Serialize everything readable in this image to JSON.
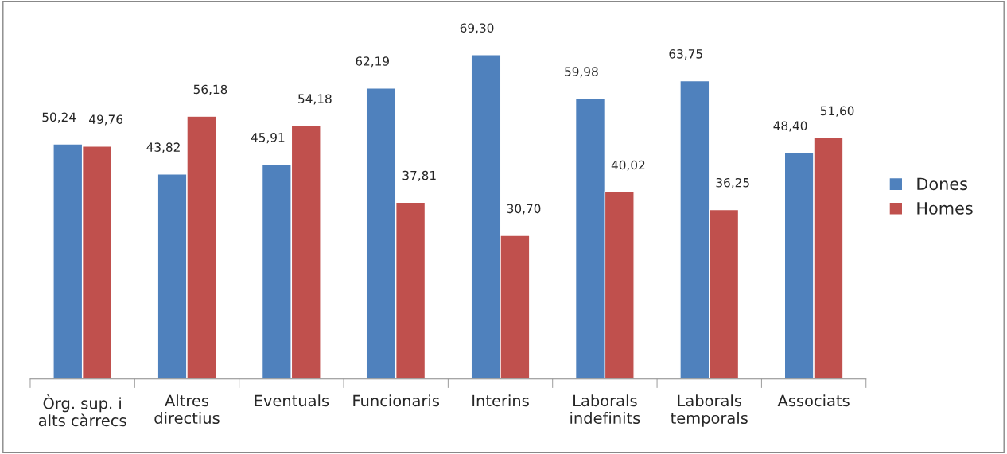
{
  "chart_data": {
    "type": "bar",
    "categories": [
      "Òrg. sup. i\nalts càrrecs",
      "Altres\ndirectius",
      "Eventuals",
      "Funcionaris",
      "Interins",
      "Laborals\nindefinits",
      "Laborals\ntemporals",
      "Associats"
    ],
    "series": [
      {
        "name": "Dones",
        "color": "#4f81bd",
        "values": [
          50.24,
          43.82,
          45.91,
          62.19,
          69.3,
          59.98,
          63.75,
          48.4
        ],
        "value_labels": [
          "50,24",
          "43,82",
          "45,91",
          "62,19",
          "69,30",
          "59,98",
          "63,75",
          "48,40"
        ]
      },
      {
        "name": "Homes",
        "color": "#c0504d",
        "values": [
          49.76,
          56.18,
          54.18,
          37.81,
          30.7,
          40.02,
          36.25,
          51.6
        ],
        "value_labels": [
          "49,76",
          "56,18",
          "54,18",
          "37,81",
          "30,70",
          "40,02",
          "36,25",
          "51,60"
        ]
      }
    ],
    "legend": "right",
    "grid": false
  }
}
